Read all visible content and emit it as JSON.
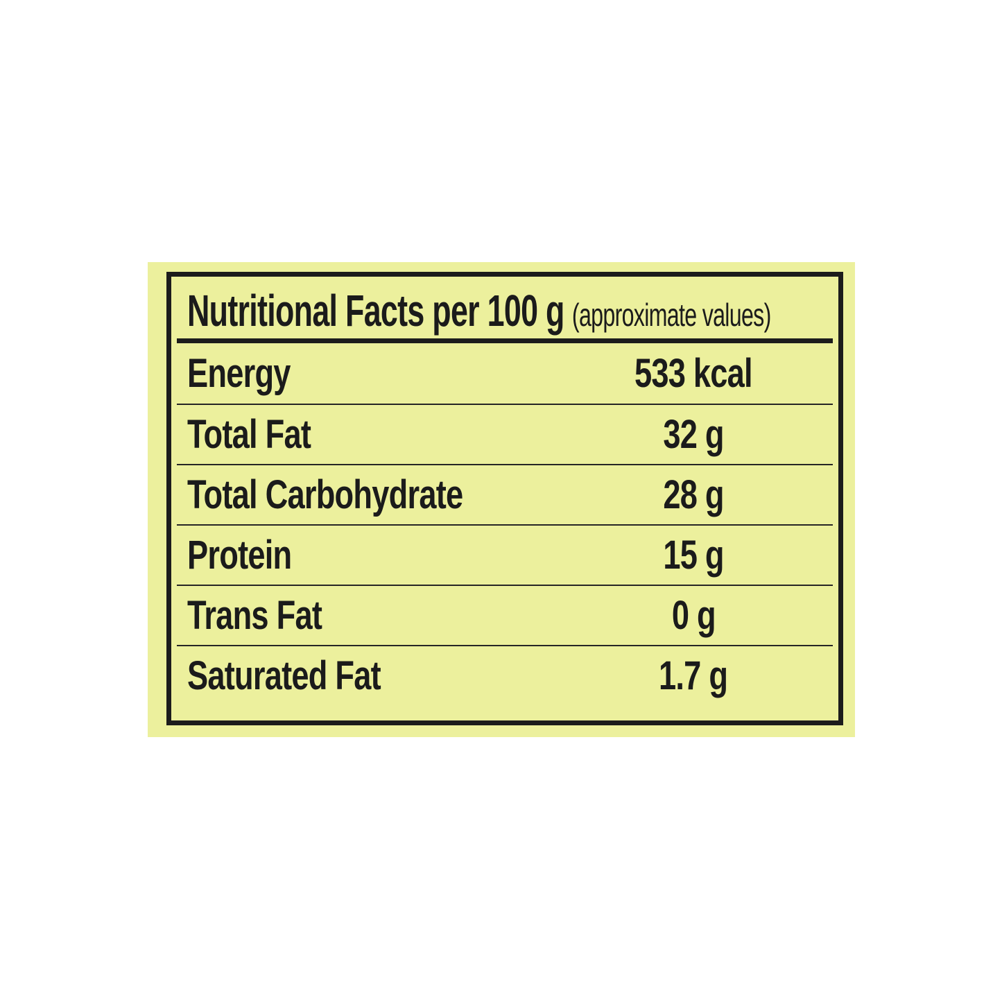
{
  "page": {
    "background_color": "#FFFFFF"
  },
  "nutrition_label": {
    "background_color": "#ECF09D",
    "border_color": "#1C1C1C",
    "text_color": "#1B1B1B",
    "title": "Nutritional Facts per 100 g",
    "title_note": "(approximate values)",
    "rows": [
      {
        "name": "Energy",
        "value": "533 kcal"
      },
      {
        "name": "Total Fat",
        "value": "32 g"
      },
      {
        "name": "Total Carbohydrate",
        "value": "28 g"
      },
      {
        "name": "Protein",
        "value": "15 g"
      },
      {
        "name": "Trans Fat",
        "value": "0 g"
      },
      {
        "name": "Saturated Fat",
        "value": "1.7 g"
      }
    ]
  }
}
